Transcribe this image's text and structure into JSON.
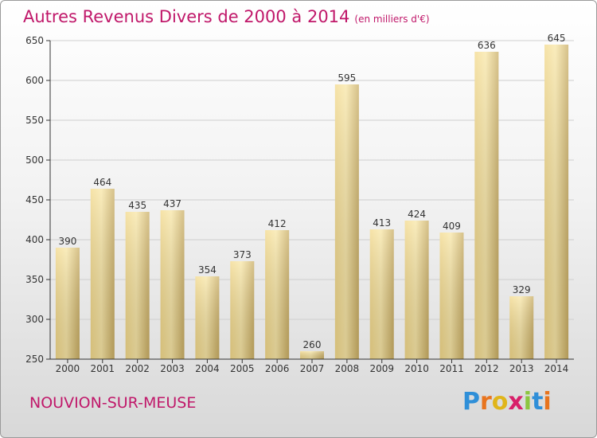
{
  "header": {
    "title": "Autres Revenus Divers de 2000 à 2014",
    "unit": "(en milliers d'€)"
  },
  "footer": {
    "commune": "NOUVION-SUR-MEUSE",
    "logo_letters": [
      "P",
      "r",
      "o",
      "x",
      "i",
      "t",
      "i"
    ],
    "logo_colors": [
      "#2f8fd8",
      "#e8741e",
      "#e0b51a",
      "#d8206a",
      "#8cc63f",
      "#2f8fd8",
      "#e8741e"
    ]
  },
  "colors": {
    "title": "#c0186a",
    "bar_light": "#f8e3a0",
    "bar_dark": "#c8aa60",
    "axis": "#333333",
    "grid": "#cfcfcf"
  },
  "chart_data": {
    "type": "bar",
    "title": "Autres Revenus Divers de 2000 à 2014",
    "subtitle": "(en milliers d'€)",
    "xlabel": "",
    "ylabel": "",
    "categories": [
      "2000",
      "2001",
      "2002",
      "2003",
      "2004",
      "2005",
      "2006",
      "2007",
      "2008",
      "2009",
      "2010",
      "2011",
      "2012",
      "2013",
      "2014"
    ],
    "values": [
      390,
      464,
      435,
      437,
      354,
      373,
      412,
      260,
      595,
      413,
      424,
      409,
      636,
      329,
      645
    ],
    "ylim": [
      250,
      650
    ],
    "yticks": [
      250,
      300,
      350,
      400,
      450,
      500,
      550,
      600,
      650
    ],
    "grid": true,
    "legend": "none"
  }
}
